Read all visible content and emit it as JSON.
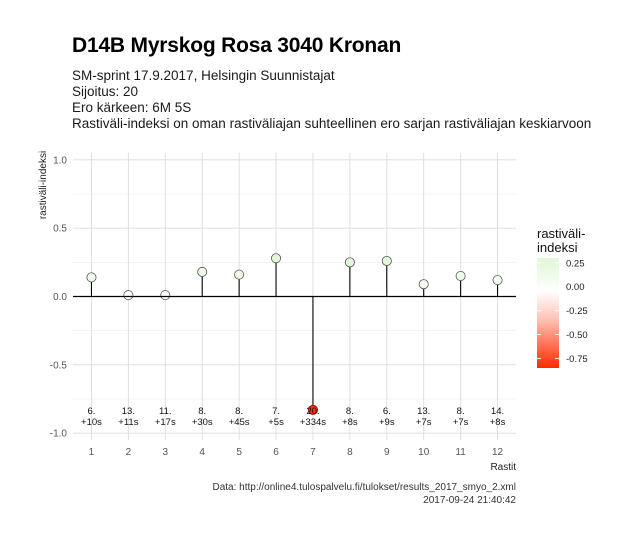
{
  "header": {
    "title": "D14B Myrskog Rosa 3040 Kronan",
    "subtitle_lines": [
      "SM-sprint 17.9.2017, Helsingin Suunnistajat",
      "Sijoitus: 20",
      "Ero kärkeen: 6M 5S",
      "Rastiväli-indeksi on oman rastiväliajan suhteellinen ero sarjan rastiväliajan keskiarvoon"
    ]
  },
  "caption": {
    "source": "Data: http://online4.tulospalvelu.fi/tulokset/results_2017_smyo_2.xml",
    "timestamp": "2017-09-24 21:40:42"
  },
  "chart_data": {
    "type": "lollipop",
    "ylabel": "rastiväli-indeksi",
    "xlabel": "Rastit",
    "ylim": [
      -1.05,
      1.05
    ],
    "y_ticks": [
      1.0,
      0.5,
      0.0,
      -0.5,
      -1.0
    ],
    "y_tick_labels": [
      "1.0",
      "0.5",
      "0.0",
      "-0.5",
      "-1.0"
    ],
    "grid": true,
    "x": [
      1,
      2,
      3,
      4,
      5,
      6,
      7,
      8,
      9,
      10,
      11,
      12
    ],
    "x_tick_labels": [
      "1",
      "2",
      "3",
      "4",
      "5",
      "6",
      "7",
      "8",
      "9",
      "10",
      "11",
      "12"
    ],
    "values": [
      0.14,
      0.01,
      0.01,
      0.18,
      0.16,
      0.28,
      -0.83,
      0.25,
      0.26,
      0.09,
      0.15,
      0.12
    ],
    "rank_labels": [
      "6.",
      "13.",
      "11.",
      "8.",
      "8.",
      "7.",
      "20.",
      "8.",
      "6.",
      "13.",
      "8.",
      "14."
    ],
    "diff_labels": [
      "+10s",
      "+11s",
      "+17s",
      "+30s",
      "+45s",
      "+5s",
      "+334s",
      "+8s",
      "+9s",
      "+7s",
      "+7s",
      "+8s"
    ],
    "legend": {
      "title_lines": [
        "rastiväli-",
        "indeksi"
      ],
      "position": "right",
      "range": [
        -0.85,
        0.3
      ],
      "ticks": [
        0.25,
        0.0,
        -0.25,
        -0.5,
        -0.75
      ],
      "tick_labels": [
        "0.25",
        "0.00",
        "-0.25",
        "-0.50",
        "-0.75"
      ],
      "colors": {
        "high": "#dff7d5",
        "mid": "#ffffff",
        "low": "#ff2a00"
      }
    }
  }
}
